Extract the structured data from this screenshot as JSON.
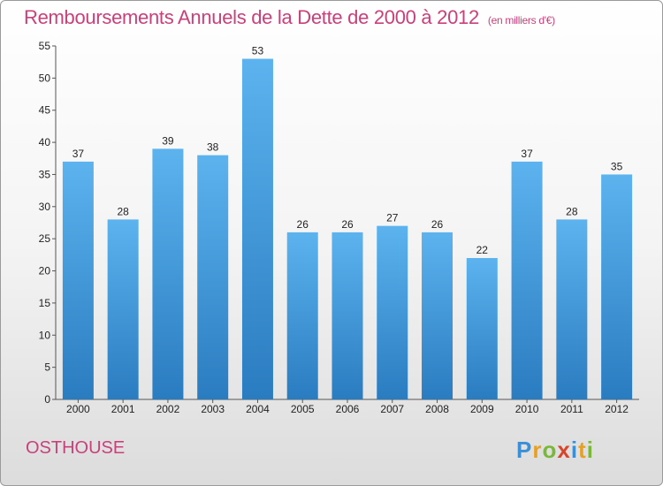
{
  "chart_data": {
    "type": "bar",
    "title": "Remboursements Annuels de la Dette de 2000 à 2012",
    "subtitle": "(en milliers d'€)",
    "xlabel": "",
    "ylabel": "",
    "categories": [
      "2000",
      "2001",
      "2002",
      "2003",
      "2004",
      "2005",
      "2006",
      "2007",
      "2008",
      "2009",
      "2010",
      "2011",
      "2012"
    ],
    "values": [
      37,
      28,
      39,
      38,
      53,
      26,
      26,
      27,
      26,
      22,
      37,
      28,
      35
    ],
    "ylim": [
      0,
      55
    ],
    "yticks": [
      0,
      5,
      10,
      15,
      20,
      25,
      30,
      35,
      40,
      45,
      50,
      55
    ],
    "grid": false,
    "bar_color": "#4a9fe0"
  },
  "footer": {
    "town": "OSTHOUSE",
    "logo_text": "Proxiti"
  }
}
